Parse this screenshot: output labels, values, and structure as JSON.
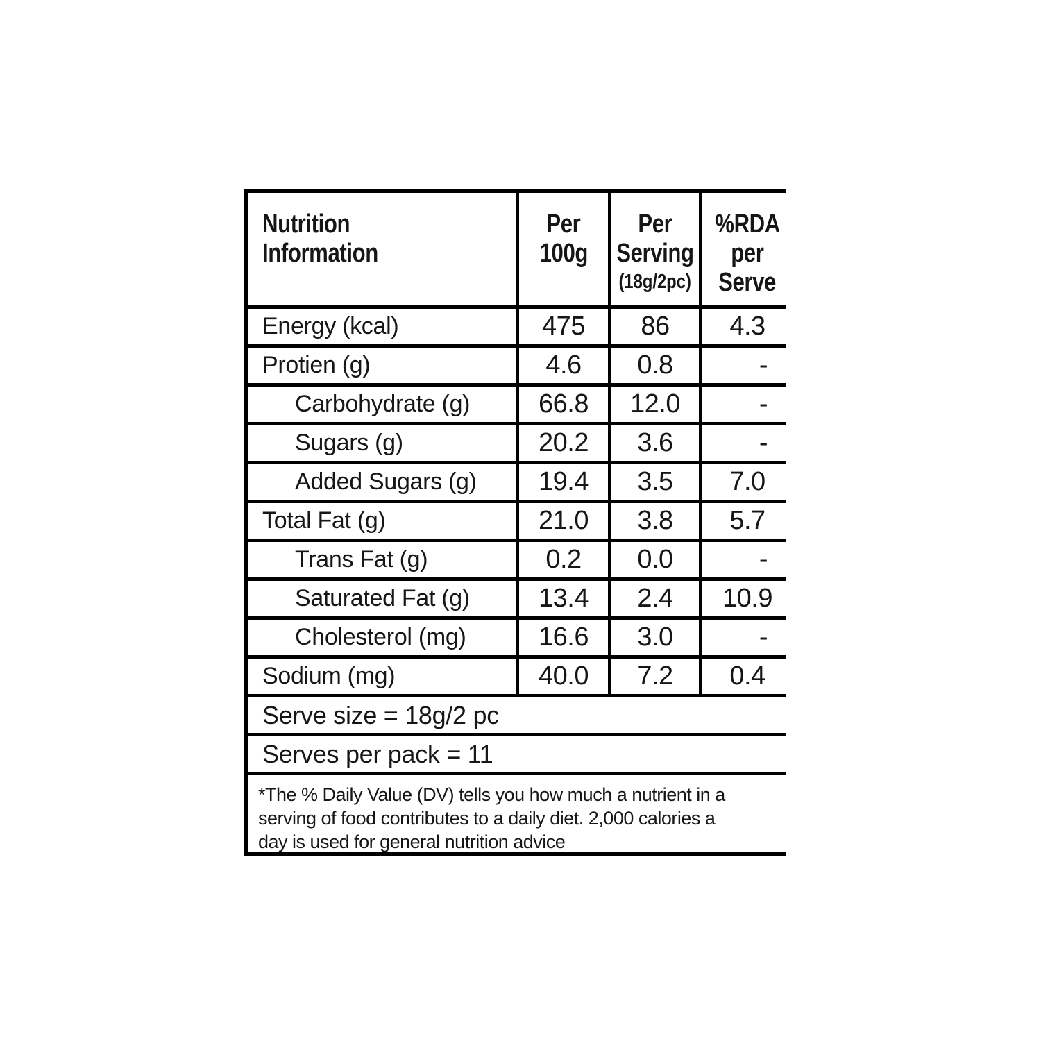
{
  "nutrition_table": {
    "header": {
      "col1_lines": [
        "Nutrition",
        "Information"
      ],
      "col2_lines": [
        "Per",
        "100g"
      ],
      "col3_lines": [
        "Per",
        "Serving"
      ],
      "col3_sub": "(18g/2pc)",
      "col4_lines": [
        "%RDA",
        "per",
        "Serve"
      ]
    },
    "rows": [
      {
        "label": "Energy (kcal)",
        "per_100g": "475",
        "per_serving": "86",
        "rda_per_serve": "4.3"
      },
      {
        "label": "Protien (g)",
        "per_100g": "4.6",
        "per_serving": "0.8",
        "rda_per_serve": "-"
      },
      {
        "label": "Carbohydrate (g)",
        "per_100g": "66.8",
        "per_serving": "12.0",
        "rda_per_serve": "-"
      },
      {
        "label": "Sugars (g)",
        "per_100g": "20.2",
        "per_serving": "3.6",
        "rda_per_serve": "-"
      },
      {
        "label": "Added Sugars (g)",
        "per_100g": "19.4",
        "per_serving": "3.5",
        "rda_per_serve": "7.0"
      },
      {
        "label": "Total Fat (g)",
        "per_100g": "21.0",
        "per_serving": "3.8",
        "rda_per_serve": "5.7"
      },
      {
        "label": "Trans Fat (g)",
        "per_100g": "0.2",
        "per_serving": "0.0",
        "rda_per_serve": "-"
      },
      {
        "label": "Saturated Fat (g)",
        "per_100g": "13.4",
        "per_serving": "2.4",
        "rda_per_serve": "10.9"
      },
      {
        "label": "Cholesterol (mg)",
        "per_100g": "16.6",
        "per_serving": "3.0",
        "rda_per_serve": "-"
      },
      {
        "label": "Sodium (mg)",
        "per_100g": "40.0",
        "per_serving": "7.2",
        "rda_per_serve": "0.4"
      }
    ],
    "serve_size": "Serve size = 18g/2 pc",
    "serves_per_pack": "Serves per pack = 11",
    "footnote_lines": [
      "*The % Daily Value (DV) tells you how much a nutrient in a",
      "serving of food contributes to a daily diet. 2,000 calories a",
      "day is used for general nutrition advice"
    ]
  }
}
